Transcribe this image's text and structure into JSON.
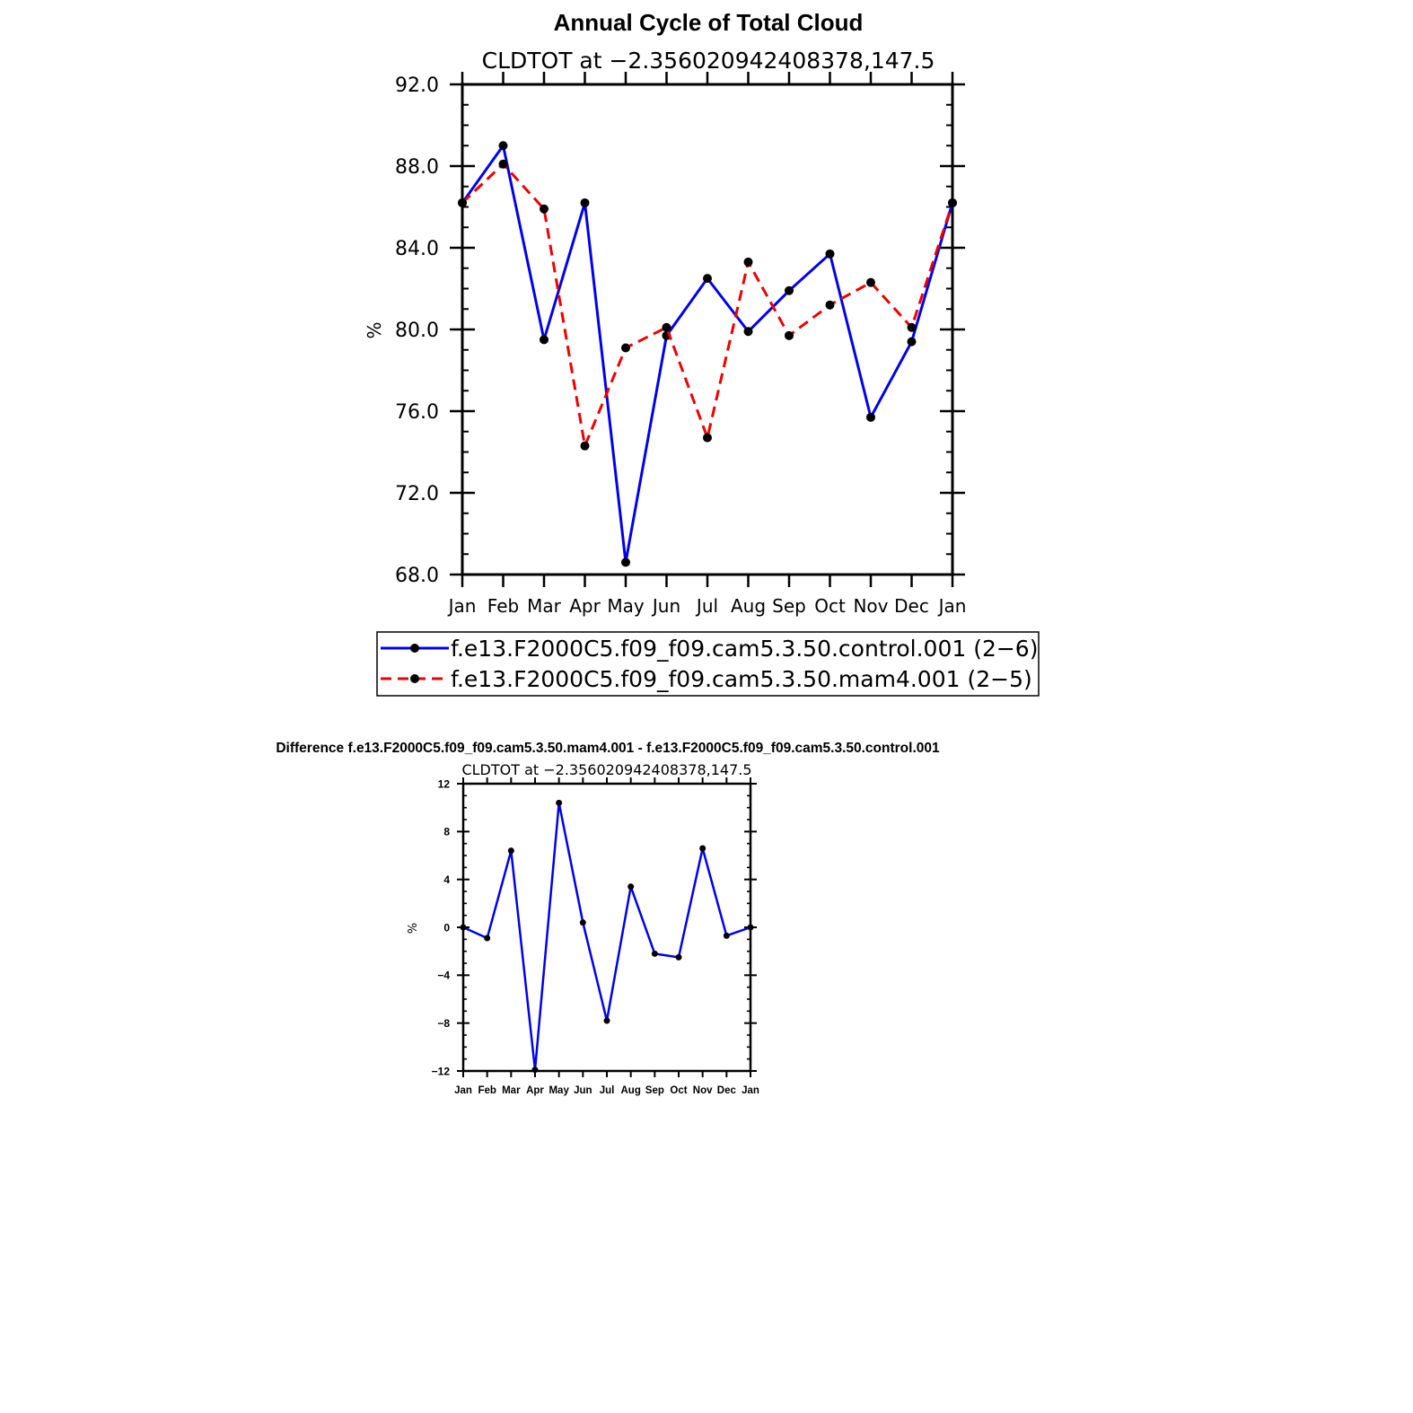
{
  "chart_data": [
    {
      "type": "line",
      "title": "Annual Cycle of Total Cloud",
      "subtitle": "CLDTOT at −2.356020942408378,147.5",
      "ylabel": "%",
      "xlabel": "",
      "categories": [
        "Jan",
        "Feb",
        "Mar",
        "Apr",
        "May",
        "Jun",
        "Jul",
        "Aug",
        "Sep",
        "Oct",
        "Nov",
        "Dec",
        "Jan"
      ],
      "ylim": [
        68.0,
        92.0
      ],
      "yticks": [
        "68.0",
        "72.0",
        "76.0",
        "80.0",
        "84.0",
        "88.0",
        "92.0"
      ],
      "grid": false,
      "legend_position": "bottom",
      "series": [
        {
          "name": "f.e13.F2000C5.f09_f09.cam5.3.50.control.001 (2−6)",
          "color": "#0000ee",
          "dash": "solid",
          "values": [
            86.2,
            89.0,
            79.5,
            86.2,
            68.6,
            79.7,
            82.5,
            79.9,
            81.9,
            83.7,
            75.7,
            79.4,
            86.2
          ]
        },
        {
          "name": "f.e13.F2000C5.f09_f09.cam5.3.50.mam4.001 (2−5)",
          "color": "#ee0000",
          "dash": "dashed",
          "values": [
            86.2,
            88.1,
            85.9,
            74.3,
            79.1,
            80.1,
            74.7,
            83.3,
            79.7,
            81.2,
            82.3,
            80.1,
            86.2
          ]
        }
      ]
    },
    {
      "type": "line",
      "title": "Difference f.e13.F2000C5.f09_f09.cam5.3.50.mam4.001 - f.e13.F2000C5.f09_f09.cam5.3.50.control.001",
      "subtitle": "CLDTOT at −2.356020942408378,147.5",
      "ylabel": "%",
      "xlabel": "",
      "categories": [
        "Jan",
        "Feb",
        "Mar",
        "Apr",
        "May",
        "Jun",
        "Jul",
        "Aug",
        "Sep",
        "Oct",
        "Nov",
        "Dec",
        "Jan"
      ],
      "ylim": [
        -12,
        12
      ],
      "yticks": [
        "−12",
        "−8",
        "−4",
        "0",
        "4",
        "8",
        "12"
      ],
      "grid": false,
      "series": [
        {
          "name": "difference",
          "color": "#0000ee",
          "dash": "solid",
          "values": [
            0.0,
            -0.9,
            6.4,
            -11.9,
            10.4,
            0.4,
            -7.8,
            3.4,
            -2.2,
            -2.5,
            6.6,
            -0.7,
            0.0
          ]
        }
      ]
    }
  ]
}
